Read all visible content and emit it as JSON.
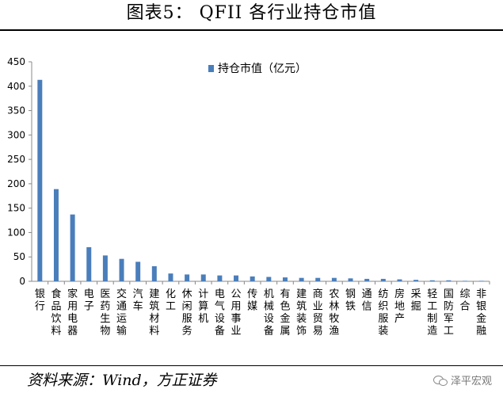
{
  "header": {
    "title": "图表5：  QFII 各行业持仓市值"
  },
  "footer": {
    "source": "资料来源：Wind，方正证券",
    "watermark": "泽平宏观",
    "watermark_icon": "wechat-icon"
  },
  "chart_data": {
    "type": "bar",
    "title": "",
    "xlabel": "",
    "ylabel": "",
    "ylim": [
      0,
      450
    ],
    "yticks": [
      0,
      50,
      100,
      150,
      200,
      250,
      300,
      350,
      400,
      450
    ],
    "grid": false,
    "legend_position": "top-center",
    "bar_color": "#4A7EBB",
    "categories": [
      "银行",
      "食品饮料",
      "家用电器",
      "电子",
      "医药生物",
      "交通运输",
      "汽车",
      "建筑材料",
      "化工",
      "休闲服务",
      "计算机",
      "电气设备",
      "公用事业",
      "传媒",
      "机械设备",
      "有色金属",
      "建筑装饰",
      "商业贸易",
      "农林牧渔",
      "钢铁",
      "通信",
      "纺织服装",
      "房地产",
      "采掘",
      "轻工制造",
      "国防军工",
      "综合",
      "非银金融"
    ],
    "series": [
      {
        "name": "持仓市值（亿元）",
        "values": [
          413,
          189,
          137,
          70,
          53,
          46,
          40,
          31,
          16,
          14,
          14,
          12,
          12,
          10,
          9,
          8,
          7,
          7,
          7,
          6,
          5,
          5,
          4,
          3,
          2,
          2,
          1,
          1
        ]
      }
    ]
  }
}
